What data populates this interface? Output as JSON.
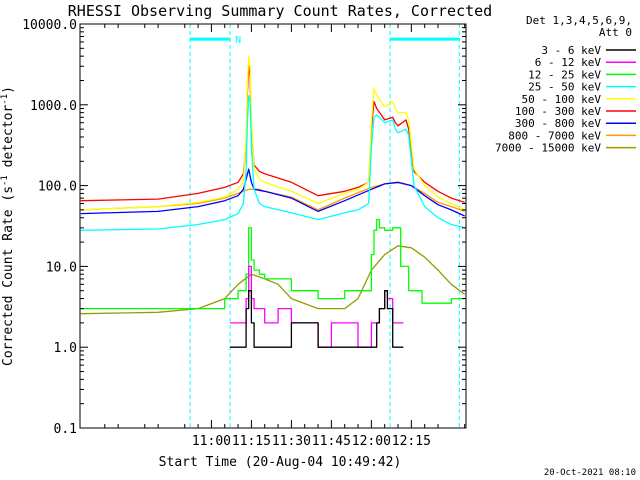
{
  "chart_data": {
    "type": "line",
    "title": "RHESSI Observing Summary Count Rates, Corrected",
    "xlabel": "Start Time (20-Aug-04 10:49:42)",
    "ylabel_main": "Corrected Count Rate (s",
    "ylabel_sup1": "-1",
    "ylabel_mid": " detector",
    "ylabel_sup2": "-1",
    "ylabel_end": ")",
    "y_scale": "log",
    "ylim": [
      0.1,
      10000
    ],
    "xlim_minutes": [
      10.7,
      155.5
    ],
    "x_ticks": [
      {
        "label": "11:00",
        "minute": 60
      },
      {
        "label": "11:15",
        "minute": 75
      },
      {
        "label": "11:30",
        "minute": 90
      },
      {
        "label": "11:45",
        "minute": 105
      },
      {
        "label": "12:00",
        "minute": 120
      },
      {
        "label": "12:15",
        "minute": 135
      }
    ],
    "y_ticks": [
      {
        "label": "10000.0",
        "value": 10000
      },
      {
        "label": "1000.0",
        "value": 1000
      },
      {
        "label": "100.0",
        "value": 100
      },
      {
        "label": "10.0",
        "value": 10
      },
      {
        "label": "1.0",
        "value": 1
      },
      {
        "label": "0.1",
        "value": 0.1
      }
    ],
    "legend_header": [
      "Det 1,3,4,5,6,9,",
      "Att 0"
    ],
    "legend_position": "right",
    "night_marker_label": "N",
    "night_intervals_minutes": [
      [
        52,
        67
      ],
      [
        127,
        153
      ]
    ],
    "night_bar_value": 6500,
    "series": [
      {
        "name": "3 - 6 keV",
        "color": "#000000",
        "style": "step",
        "x": [
          67,
          70,
          73,
          74,
          75,
          76,
          80,
          90,
          100,
          110,
          117,
          122,
          123,
          125,
          126,
          128,
          132
        ],
        "y": [
          1,
          1,
          3,
          5,
          2,
          1,
          1,
          2,
          1,
          1,
          1,
          2,
          3,
          5,
          3,
          1,
          1
        ]
      },
      {
        "name": "6 - 12 keV",
        "color": "#ff00ff",
        "style": "step",
        "x": [
          67,
          70,
          73,
          74,
          75,
          76,
          80,
          85,
          90,
          95,
          100,
          105,
          110,
          115,
          120,
          123,
          125,
          126,
          128,
          132
        ],
        "y": [
          2,
          2,
          4,
          10,
          4,
          3,
          2,
          3,
          2,
          2,
          1,
          2,
          2,
          1,
          2,
          3,
          5,
          4,
          2,
          2
        ]
      },
      {
        "name": "12 - 25 keV",
        "color": "#00ff00",
        "style": "step",
        "x": [
          11,
          40,
          55,
          65,
          70,
          73,
          74,
          75,
          76,
          78,
          80,
          90,
          100,
          110,
          115,
          120,
          121,
          122,
          123,
          125,
          128,
          131,
          134,
          139,
          144,
          150,
          155
        ],
        "y": [
          3,
          3,
          3,
          4,
          5,
          8,
          30,
          12,
          9,
          8,
          7,
          5,
          4,
          5,
          5,
          14,
          28,
          38,
          30,
          28,
          30,
          10,
          5,
          3.5,
          3.5,
          4,
          4
        ]
      },
      {
        "name": "25 - 50 keV",
        "color": "#00ffff",
        "style": "line",
        "x": [
          11,
          40,
          55,
          65,
          70,
          72,
          73,
          73.5,
          74,
          74.5,
          75,
          76,
          78,
          80,
          90,
          100,
          110,
          115,
          119,
          120,
          121,
          122,
          125,
          128,
          129,
          130,
          133,
          134,
          136,
          140,
          145,
          150,
          155
        ],
        "y": [
          28,
          29,
          33,
          38,
          45,
          60,
          150,
          600,
          1300,
          1100,
          300,
          90,
          60,
          55,
          46,
          38,
          46,
          50,
          60,
          300,
          700,
          750,
          600,
          650,
          500,
          450,
          500,
          420,
          100,
          55,
          40,
          33,
          30
        ]
      },
      {
        "name": "50 - 100 keV",
        "color": "#ffff00",
        "style": "line",
        "x": [
          11,
          40,
          55,
          65,
          70,
          72,
          73,
          73.5,
          74,
          74.5,
          75,
          76,
          78,
          80,
          90,
          100,
          110,
          115,
          119,
          120,
          121,
          122,
          125,
          128,
          129,
          130,
          133,
          134,
          136,
          140,
          145,
          150,
          155
        ],
        "y": [
          50,
          55,
          62,
          72,
          90,
          110,
          400,
          1800,
          3900,
          3000,
          700,
          160,
          120,
          110,
          85,
          60,
          80,
          90,
          110,
          600,
          1600,
          1300,
          950,
          1100,
          900,
          800,
          800,
          650,
          160,
          100,
          72,
          60,
          50
        ]
      },
      {
        "name": "100 - 300 keV",
        "color": "#ff0000",
        "style": "line",
        "x": [
          11,
          40,
          55,
          65,
          70,
          72,
          73,
          73.5,
          74,
          74.5,
          75,
          76,
          78,
          80,
          90,
          100,
          110,
          115,
          119,
          120,
          121,
          122,
          125,
          128,
          129,
          130,
          133,
          134,
          136,
          140,
          145,
          150,
          155
        ],
        "y": [
          65,
          68,
          80,
          95,
          110,
          140,
          300,
          1400,
          3000,
          2200,
          500,
          180,
          150,
          140,
          110,
          75,
          85,
          95,
          110,
          500,
          1100,
          900,
          650,
          700,
          600,
          550,
          650,
          500,
          150,
          110,
          85,
          70,
          62
        ]
      },
      {
        "name": "300 - 800 keV",
        "color": "#0000ff",
        "style": "line",
        "x": [
          11,
          40,
          55,
          65,
          70,
          72,
          73,
          74,
          75,
          76,
          80,
          90,
          100,
          110,
          120,
          125,
          130,
          135,
          140,
          145,
          150,
          155
        ],
        "y": [
          45,
          48,
          55,
          65,
          75,
          90,
          120,
          160,
          110,
          90,
          85,
          70,
          48,
          65,
          90,
          105,
          110,
          100,
          75,
          58,
          50,
          42
        ]
      },
      {
        "name": "800 - 7000 keV",
        "color": "#ff9900",
        "style": "line",
        "x": [
          11,
          40,
          55,
          65,
          70,
          74,
          78,
          80,
          90,
          100,
          110,
          120,
          125,
          130,
          135,
          140,
          145,
          150,
          155
        ],
        "y": [
          50,
          55,
          60,
          70,
          80,
          90,
          90,
          85,
          72,
          50,
          70,
          95,
          105,
          108,
          100,
          80,
          62,
          55,
          48
        ]
      },
      {
        "name": "7000 - 15000 keV",
        "color": "#999900",
        "style": "line",
        "x": [
          11,
          40,
          55,
          65,
          70,
          75,
          80,
          85,
          90,
          100,
          110,
          115,
          120,
          125,
          130,
          135,
          140,
          145,
          150,
          155
        ],
        "y": [
          2.6,
          2.7,
          3,
          4,
          6,
          8,
          7,
          6,
          4,
          3,
          3,
          4,
          9,
          14,
          18,
          17,
          13,
          9,
          6,
          4.5
        ]
      }
    ],
    "timestamp": "20-Oct-2021 08:10"
  }
}
